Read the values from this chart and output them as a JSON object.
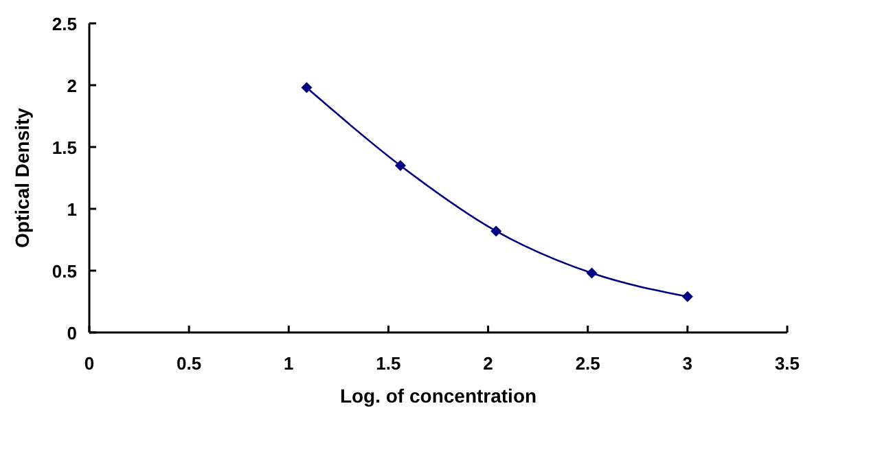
{
  "chart_data": {
    "type": "line",
    "xlabel": "Log. of concentration",
    "ylabel": "Optical Density",
    "x": [
      1.09,
      1.56,
      2.04,
      2.52,
      3.0
    ],
    "series": [
      {
        "color": "#000080",
        "values": [
          1.98,
          1.35,
          0.82,
          0.48,
          0.29
        ]
      }
    ],
    "xlim": [
      0,
      3.5
    ],
    "xticks": [
      0,
      0.5,
      1,
      1.5,
      2,
      2.5,
      3,
      3.5
    ],
    "ylim": [
      0,
      2.5
    ],
    "yticks": [
      0,
      0.5,
      1,
      1.5,
      2,
      2.5
    ],
    "grid": false,
    "marker": "diamond",
    "line_style": "solid"
  }
}
